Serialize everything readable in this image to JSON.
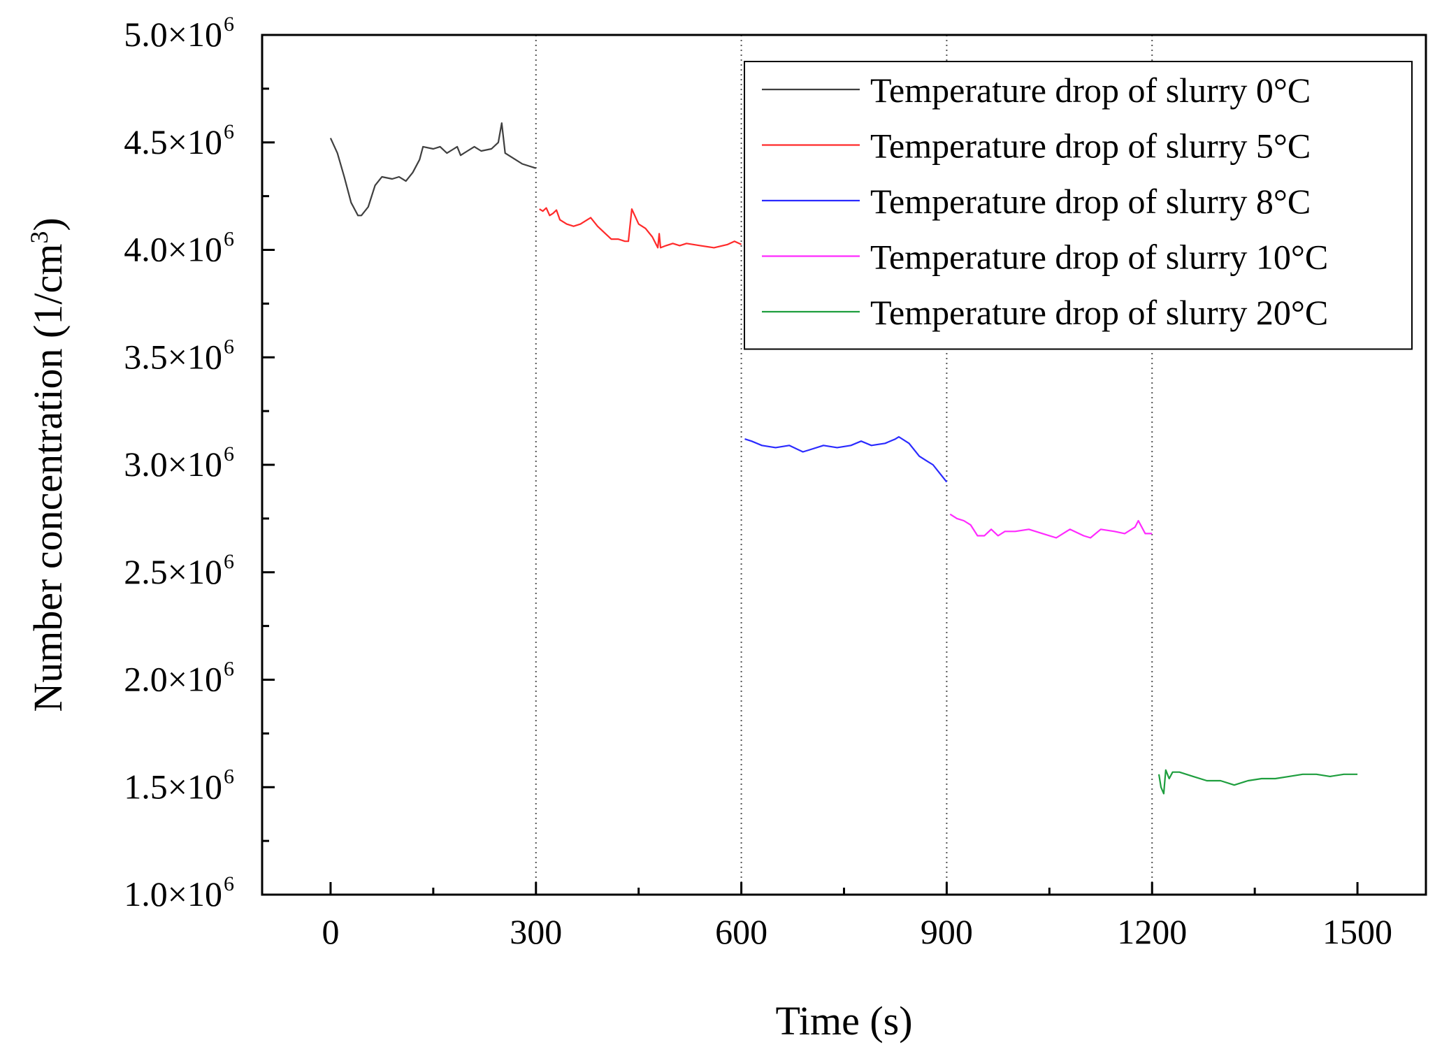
{
  "chart_data": {
    "type": "line",
    "title": "",
    "xlabel": "Time (s)",
    "ylabel": {
      "text": "Number concentration (1/cm",
      "superscript": "3",
      "close": ")"
    },
    "xlim": [
      -100,
      1600
    ],
    "ylim": [
      1000000,
      5000000
    ],
    "x_ticks": [
      0,
      300,
      600,
      900,
      1200,
      1500
    ],
    "x_tick_labels": [
      "0",
      "300",
      "600",
      "900",
      "1200",
      "1500"
    ],
    "y_ticks": [
      {
        "value": 1000000,
        "mantissa": "1.0×10",
        "exponent": "6"
      },
      {
        "value": 1500000,
        "mantissa": "1.5×10",
        "exponent": "6"
      },
      {
        "value": 2000000,
        "mantissa": "2.0×10",
        "exponent": "6"
      },
      {
        "value": 2500000,
        "mantissa": "2.5×10",
        "exponent": "6"
      },
      {
        "value": 3000000,
        "mantissa": "3.0×10",
        "exponent": "6"
      },
      {
        "value": 3500000,
        "mantissa": "3.5×10",
        "exponent": "6"
      },
      {
        "value": 4000000,
        "mantissa": "4.0×10",
        "exponent": "6"
      },
      {
        "value": 4500000,
        "mantissa": "4.5×10",
        "exponent": "6"
      },
      {
        "value": 5000000,
        "mantissa": "5.0×10",
        "exponent": "6"
      }
    ],
    "grid": false,
    "vertical_reference_lines": [
      300,
      600,
      900,
      1200
    ],
    "legend_position": "top-right",
    "series": [
      {
        "name": "Temperature drop of slurry 0°C",
        "color": "#3f3f3f",
        "points": [
          [
            0,
            4520000
          ],
          [
            10,
            4450000
          ],
          [
            20,
            4340000
          ],
          [
            30,
            4220000
          ],
          [
            40,
            4160000
          ],
          [
            45,
            4160000
          ],
          [
            55,
            4200000
          ],
          [
            65,
            4300000
          ],
          [
            75,
            4340000
          ],
          [
            90,
            4330000
          ],
          [
            100,
            4340000
          ],
          [
            110,
            4320000
          ],
          [
            120,
            4360000
          ],
          [
            130,
            4420000
          ],
          [
            135,
            4480000
          ],
          [
            150,
            4470000
          ],
          [
            160,
            4480000
          ],
          [
            170,
            4450000
          ],
          [
            180,
            4470000
          ],
          [
            185,
            4480000
          ],
          [
            190,
            4440000
          ],
          [
            200,
            4460000
          ],
          [
            210,
            4480000
          ],
          [
            220,
            4460000
          ],
          [
            235,
            4470000
          ],
          [
            245,
            4500000
          ],
          [
            250,
            4590000
          ],
          [
            255,
            4450000
          ],
          [
            270,
            4420000
          ],
          [
            280,
            4400000
          ],
          [
            300,
            4380000
          ]
        ]
      },
      {
        "name": "Temperature drop of slurry 5°C",
        "color": "#ff2a2a",
        "points": [
          [
            305,
            4190000
          ],
          [
            310,
            4180000
          ],
          [
            315,
            4195000
          ],
          [
            320,
            4160000
          ],
          [
            325,
            4170000
          ],
          [
            330,
            4185000
          ],
          [
            335,
            4140000
          ],
          [
            345,
            4120000
          ],
          [
            355,
            4110000
          ],
          [
            365,
            4120000
          ],
          [
            375,
            4140000
          ],
          [
            380,
            4150000
          ],
          [
            390,
            4110000
          ],
          [
            400,
            4080000
          ],
          [
            410,
            4050000
          ],
          [
            420,
            4050000
          ],
          [
            430,
            4040000
          ],
          [
            435,
            4040000
          ],
          [
            440,
            4190000
          ],
          [
            450,
            4120000
          ],
          [
            460,
            4100000
          ],
          [
            470,
            4060000
          ],
          [
            478,
            4010000
          ],
          [
            480,
            4075000
          ],
          [
            482,
            4010000
          ],
          [
            490,
            4020000
          ],
          [
            500,
            4030000
          ],
          [
            510,
            4020000
          ],
          [
            520,
            4030000
          ],
          [
            540,
            4020000
          ],
          [
            560,
            4010000
          ],
          [
            580,
            4025000
          ],
          [
            590,
            4040000
          ],
          [
            600,
            4025000
          ]
        ]
      },
      {
        "name": "Temperature drop of slurry 8°C",
        "color": "#2a2aff",
        "points": [
          [
            605,
            3120000
          ],
          [
            615,
            3110000
          ],
          [
            630,
            3090000
          ],
          [
            650,
            3080000
          ],
          [
            670,
            3090000
          ],
          [
            690,
            3060000
          ],
          [
            700,
            3070000
          ],
          [
            720,
            3090000
          ],
          [
            740,
            3080000
          ],
          [
            760,
            3090000
          ],
          [
            775,
            3110000
          ],
          [
            790,
            3090000
          ],
          [
            810,
            3100000
          ],
          [
            825,
            3120000
          ],
          [
            830,
            3130000
          ],
          [
            845,
            3100000
          ],
          [
            860,
            3040000
          ],
          [
            870,
            3020000
          ],
          [
            880,
            3000000
          ],
          [
            890,
            2960000
          ],
          [
            900,
            2920000
          ]
        ]
      },
      {
        "name": "Temperature drop of slurry 10°C",
        "color": "#ff2aff",
        "points": [
          [
            905,
            2770000
          ],
          [
            915,
            2750000
          ],
          [
            925,
            2740000
          ],
          [
            935,
            2720000
          ],
          [
            945,
            2670000
          ],
          [
            955,
            2670000
          ],
          [
            965,
            2700000
          ],
          [
            975,
            2670000
          ],
          [
            985,
            2690000
          ],
          [
            1000,
            2690000
          ],
          [
            1020,
            2700000
          ],
          [
            1040,
            2680000
          ],
          [
            1060,
            2660000
          ],
          [
            1080,
            2700000
          ],
          [
            1100,
            2670000
          ],
          [
            1110,
            2660000
          ],
          [
            1125,
            2700000
          ],
          [
            1145,
            2690000
          ],
          [
            1160,
            2680000
          ],
          [
            1175,
            2710000
          ],
          [
            1180,
            2740000
          ],
          [
            1190,
            2680000
          ],
          [
            1200,
            2680000
          ]
        ]
      },
      {
        "name": "Temperature drop of slurry 20°C",
        "color": "#1e9e3e",
        "points": [
          [
            1210,
            1560000
          ],
          [
            1213,
            1500000
          ],
          [
            1217,
            1470000
          ],
          [
            1220,
            1580000
          ],
          [
            1225,
            1540000
          ],
          [
            1230,
            1570000
          ],
          [
            1240,
            1570000
          ],
          [
            1260,
            1550000
          ],
          [
            1280,
            1530000
          ],
          [
            1300,
            1530000
          ],
          [
            1320,
            1510000
          ],
          [
            1340,
            1530000
          ],
          [
            1360,
            1540000
          ],
          [
            1380,
            1540000
          ],
          [
            1400,
            1550000
          ],
          [
            1420,
            1560000
          ],
          [
            1440,
            1560000
          ],
          [
            1460,
            1550000
          ],
          [
            1480,
            1560000
          ],
          [
            1500,
            1560000
          ]
        ]
      }
    ]
  }
}
